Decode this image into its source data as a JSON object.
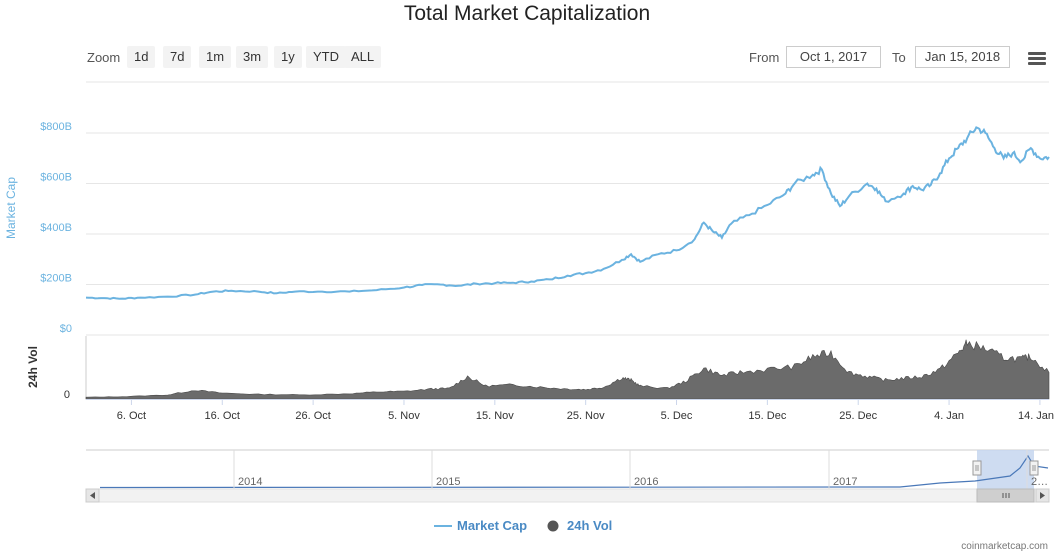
{
  "title": "Total Market Capitalization",
  "range_selector": {
    "zoom_label": "Zoom",
    "buttons": [
      "1d",
      "7d",
      "1m",
      "3m",
      "1y",
      "YTD",
      "ALL"
    ],
    "from_label": "From",
    "from_value": "Oct 1, 2017",
    "to_label": "To",
    "to_value": "Jan 15, 2018"
  },
  "navigator": {
    "year_labels": [
      "2014",
      "2015",
      "2016",
      "2017",
      "2…"
    ]
  },
  "legend": {
    "market_cap": "Market Cap",
    "volume": "24h Vol"
  },
  "credit": "coinmarketcap.com",
  "colors": {
    "market_cap": "#6bb3e0",
    "volume": "#6b6b6b",
    "axis_label": "#6bb3e0",
    "legend_text": "#4a8ac4"
  },
  "chart_data": [
    {
      "type": "line",
      "title": "Total Market Capitalization",
      "ylabel": "Market Cap",
      "ylim": [
        0,
        1000
      ],
      "y_ticks": [
        "$0",
        "$200B",
        "$400B",
        "$600B",
        "$800B"
      ],
      "y_tick_values": [
        0,
        200,
        400,
        600,
        800
      ],
      "x_ticks": [
        "6. Oct",
        "16. Oct",
        "26. Oct",
        "5. Nov",
        "15. Nov",
        "25. Nov",
        "5. Dec",
        "15. Dec",
        "25. Dec",
        "4. Jan",
        "14. Jan"
      ],
      "x_tick_dates": [
        "2017-10-06",
        "2017-10-16",
        "2017-10-26",
        "2017-11-05",
        "2017-11-15",
        "2017-11-25",
        "2017-12-05",
        "2017-12-15",
        "2017-12-25",
        "2018-01-04",
        "2018-01-14"
      ],
      "xlim": [
        "2017-10-01",
        "2018-01-15"
      ],
      "grid": true,
      "series": [
        {
          "name": "Market Cap",
          "unit": "billion USD",
          "points": [
            [
              "2017-10-01",
              148
            ],
            [
              "2017-10-03",
              146
            ],
            [
              "2017-10-05",
              144
            ],
            [
              "2017-10-07",
              148
            ],
            [
              "2017-10-10",
              152
            ],
            [
              "2017-10-13",
              160
            ],
            [
              "2017-10-15",
              172
            ],
            [
              "2017-10-17",
              175
            ],
            [
              "2017-10-20",
              172
            ],
            [
              "2017-10-22",
              165
            ],
            [
              "2017-10-24",
              172
            ],
            [
              "2017-10-27",
              172
            ],
            [
              "2017-10-30",
              172
            ],
            [
              "2017-11-02",
              178
            ],
            [
              "2017-11-05",
              188
            ],
            [
              "2017-11-07",
              198
            ],
            [
              "2017-11-09",
              200
            ],
            [
              "2017-11-11",
              195
            ],
            [
              "2017-11-13",
              203
            ],
            [
              "2017-11-15",
              205
            ],
            [
              "2017-11-17",
              207
            ],
            [
              "2017-11-19",
              212
            ],
            [
              "2017-11-21",
              220
            ],
            [
              "2017-11-23",
              235
            ],
            [
              "2017-11-25",
              245
            ],
            [
              "2017-11-27",
              262
            ],
            [
              "2017-11-29",
              298
            ],
            [
              "2017-11-30",
              320
            ],
            [
              "2017-12-01",
              290
            ],
            [
              "2017-12-03",
              320
            ],
            [
              "2017-12-05",
              335
            ],
            [
              "2017-12-07",
              380
            ],
            [
              "2017-12-08",
              445
            ],
            [
              "2017-12-09",
              410
            ],
            [
              "2017-12-10",
              385
            ],
            [
              "2017-12-11",
              440
            ],
            [
              "2017-12-13",
              475
            ],
            [
              "2017-12-15",
              515
            ],
            [
              "2017-12-17",
              560
            ],
            [
              "2017-12-18",
              600
            ],
            [
              "2017-12-20",
              635
            ],
            [
              "2017-12-21",
              655
            ],
            [
              "2017-12-22",
              560
            ],
            [
              "2017-12-23",
              510
            ],
            [
              "2017-12-24",
              550
            ],
            [
              "2017-12-26",
              600
            ],
            [
              "2017-12-27",
              580
            ],
            [
              "2017-12-28",
              530
            ],
            [
              "2017-12-30",
              560
            ],
            [
              "2017-12-31",
              590
            ],
            [
              "2018-01-01",
              575
            ],
            [
              "2018-01-02",
              595
            ],
            [
              "2018-01-03",
              640
            ],
            [
              "2018-01-04",
              700
            ],
            [
              "2018-01-05",
              740
            ],
            [
              "2018-01-06",
              780
            ],
            [
              "2018-01-07",
              822
            ],
            [
              "2018-01-08",
              800
            ],
            [
              "2018-01-09",
              740
            ],
            [
              "2018-01-10",
              700
            ],
            [
              "2018-01-11",
              720
            ],
            [
              "2018-01-12",
              690
            ],
            [
              "2018-01-13",
              740
            ],
            [
              "2018-01-14",
              700
            ],
            [
              "2018-01-15",
              705
            ]
          ]
        },
        {
          "name": "24h Vol",
          "unit": "relative",
          "points": [
            [
              "2017-10-01",
              0.03
            ],
            [
              "2017-10-05",
              0.04
            ],
            [
              "2017-10-10",
              0.07
            ],
            [
              "2017-10-13",
              0.15
            ],
            [
              "2017-10-16",
              0.1
            ],
            [
              "2017-10-20",
              0.08
            ],
            [
              "2017-10-25",
              0.07
            ],
            [
              "2017-10-30",
              0.09
            ],
            [
              "2017-11-02",
              0.12
            ],
            [
              "2017-11-05",
              0.13
            ],
            [
              "2017-11-08",
              0.17
            ],
            [
              "2017-11-10",
              0.18
            ],
            [
              "2017-11-12",
              0.38
            ],
            [
              "2017-11-14",
              0.22
            ],
            [
              "2017-11-17",
              0.24
            ],
            [
              "2017-11-20",
              0.2
            ],
            [
              "2017-11-23",
              0.17
            ],
            [
              "2017-11-25",
              0.16
            ],
            [
              "2017-11-27",
              0.2
            ],
            [
              "2017-11-29",
              0.36
            ],
            [
              "2017-11-30",
              0.32
            ],
            [
              "2017-12-01",
              0.22
            ],
            [
              "2017-12-04",
              0.18
            ],
            [
              "2017-12-06",
              0.3
            ],
            [
              "2017-12-08",
              0.52
            ],
            [
              "2017-12-10",
              0.4
            ],
            [
              "2017-12-12",
              0.45
            ],
            [
              "2017-12-15",
              0.5
            ],
            [
              "2017-12-18",
              0.55
            ],
            [
              "2017-12-20",
              0.72
            ],
            [
              "2017-12-22",
              0.78
            ],
            [
              "2017-12-24",
              0.45
            ],
            [
              "2017-12-26",
              0.38
            ],
            [
              "2017-12-28",
              0.32
            ],
            [
              "2017-12-30",
              0.35
            ],
            [
              "2018-01-01",
              0.38
            ],
            [
              "2018-01-03",
              0.5
            ],
            [
              "2018-01-05",
              0.78
            ],
            [
              "2018-01-06",
              0.95
            ],
            [
              "2018-01-08",
              0.85
            ],
            [
              "2018-01-10",
              0.7
            ],
            [
              "2018-01-12",
              0.68
            ],
            [
              "2018-01-13",
              0.72
            ],
            [
              "2018-01-15",
              0.45
            ]
          ]
        }
      ]
    }
  ]
}
